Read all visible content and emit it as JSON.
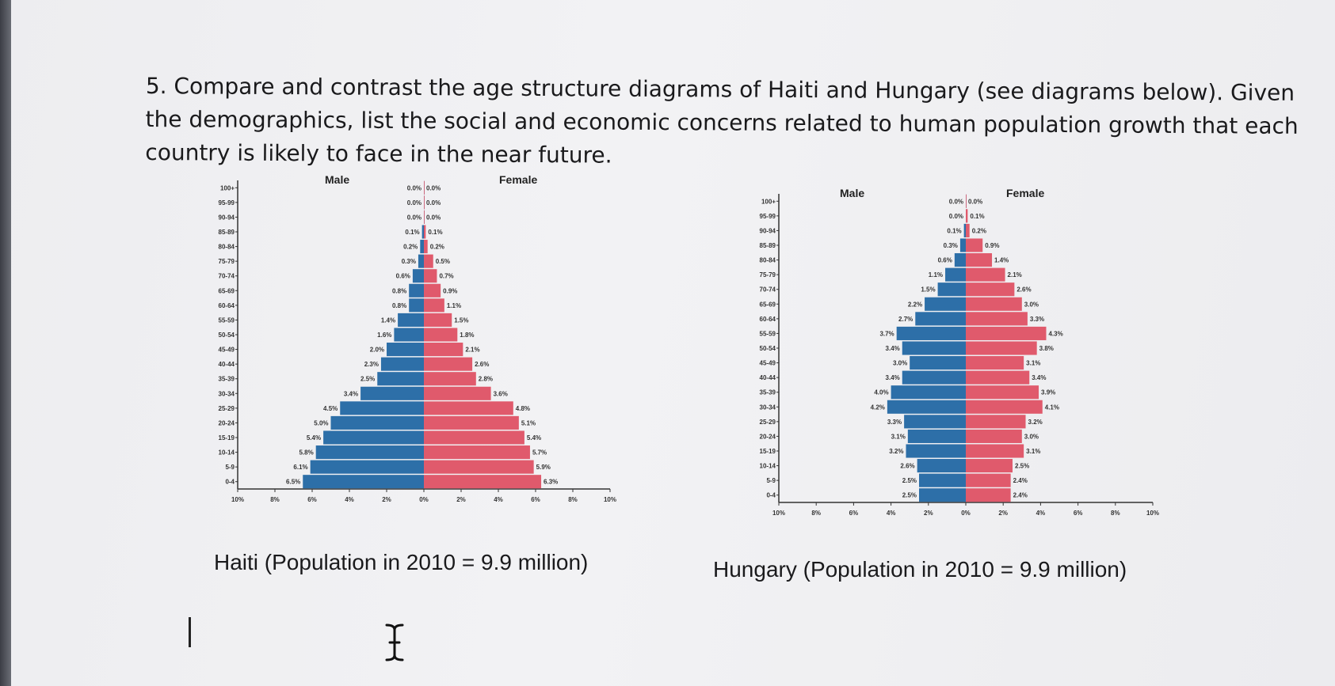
{
  "question": {
    "text": "5. Compare and contrast the age structure diagrams of Haiti and Hungary (see diagrams below). Given the demographics, list the social and economic concerns related to human population growth that each country is likely to face in the near future."
  },
  "colors": {
    "male": "#2d6fa8",
    "female": "#e05a6c",
    "axis": "#333333",
    "text": "#1a1a1c"
  },
  "chart_data": [
    {
      "type": "bar",
      "orientation": "population-pyramid",
      "caption": "Haiti (Population in 2010 = 9.9 million)",
      "legend": [
        "Male",
        "Female"
      ],
      "categories": [
        "0-4",
        "5-9",
        "10-14",
        "15-19",
        "20-24",
        "25-29",
        "30-34",
        "35-39",
        "40-44",
        "45-49",
        "50-54",
        "55-59",
        "60-64",
        "65-69",
        "70-74",
        "75-79",
        "80-84",
        "85-89",
        "90-94",
        "95-99",
        "100+"
      ],
      "series": [
        {
          "name": "Male",
          "values": [
            6.5,
            6.1,
            5.8,
            5.4,
            5.0,
            4.5,
            3.4,
            2.5,
            2.3,
            2.0,
            1.6,
            1.4,
            0.8,
            0.8,
            0.6,
            0.3,
            0.2,
            0.1,
            0.0,
            0.0,
            0.0
          ],
          "labels": [
            "6.5%",
            "6.1%",
            "5.8%",
            "5.4%",
            "5.0%",
            "4.5%",
            "3.4%",
            "2.5%",
            "2.3%",
            "2.0%",
            "1.6%",
            "1.4%",
            "0.8%",
            "0.8%",
            "0.6%",
            "0.3%",
            "0.2%",
            "0.1%",
            "0.0%",
            "0.0%",
            "0.0%"
          ]
        },
        {
          "name": "Female",
          "values": [
            6.3,
            5.9,
            5.7,
            5.4,
            5.1,
            4.8,
            3.6,
            2.8,
            2.6,
            2.1,
            1.8,
            1.5,
            1.1,
            0.9,
            0.7,
            0.5,
            0.2,
            0.1,
            0.0,
            0.0,
            0.0
          ],
          "labels": [
            "6.3%",
            "5.9%",
            "5.7%",
            "5.4%",
            "5.1%",
            "4.8%",
            "3.6%",
            "2.8%",
            "2.6%",
            "2.1%",
            "1.8%",
            "1.5%",
            "1.1%",
            "0.9%",
            "0.7%",
            "0.5%",
            "0.2%",
            "0.1%",
            "0.0%",
            "0.0%",
            "0.0%"
          ]
        }
      ],
      "x_ticks": [
        "10%",
        "8%",
        "6%",
        "4%",
        "2%",
        "0%",
        "2%",
        "4%",
        "6%",
        "8%",
        "10%"
      ],
      "xlim": [
        -10,
        10
      ]
    },
    {
      "type": "bar",
      "orientation": "population-pyramid",
      "caption": "Hungary (Population in 2010 = 9.9 million)",
      "legend": [
        "Male",
        "Female"
      ],
      "categories": [
        "0-4",
        "5-9",
        "10-14",
        "15-19",
        "20-24",
        "25-29",
        "30-34",
        "35-39",
        "40-44",
        "45-49",
        "50-54",
        "55-59",
        "60-64",
        "65-69",
        "70-74",
        "75-79",
        "80-84",
        "85-89",
        "90-94",
        "95-99",
        "100+"
      ],
      "series": [
        {
          "name": "Male",
          "values": [
            2.5,
            2.5,
            2.6,
            3.2,
            3.1,
            3.3,
            4.2,
            4.0,
            3.4,
            3.0,
            3.4,
            3.7,
            2.7,
            2.2,
            1.5,
            1.1,
            0.6,
            0.3,
            0.1,
            0.0,
            0.0
          ],
          "labels": [
            "2.5%",
            "2.5%",
            "2.6%",
            "3.2%",
            "3.1%",
            "3.3%",
            "4.2%",
            "4.0%",
            "3.4%",
            "3.0%",
            "3.4%",
            "3.7%",
            "2.7%",
            "2.2%",
            "1.5%",
            "1.1%",
            "0.6%",
            "0.3%",
            "0.1%",
            "0.0%",
            "0.0%"
          ]
        },
        {
          "name": "Female",
          "values": [
            2.4,
            2.4,
            2.5,
            3.1,
            3.0,
            3.2,
            4.1,
            3.9,
            3.4,
            3.1,
            3.8,
            4.3,
            3.3,
            3.0,
            2.6,
            2.1,
            1.4,
            0.9,
            0.2,
            0.1,
            0.0
          ],
          "labels": [
            "2.4%",
            "2.4%",
            "2.5%",
            "3.1%",
            "3.0%",
            "3.2%",
            "4.1%",
            "3.9%",
            "3.4%",
            "3.1%",
            "3.8%",
            "4.3%",
            "3.3%",
            "3.0%",
            "2.6%",
            "2.1%",
            "1.4%",
            "0.9%",
            "0.2%",
            "0.1%",
            "0.0%"
          ]
        }
      ],
      "x_ticks": [
        "10%",
        "8%",
        "6%",
        "4%",
        "2%",
        "0%",
        "2%",
        "4%",
        "6%",
        "8%",
        "10%"
      ],
      "xlim": [
        -10,
        10
      ]
    }
  ]
}
